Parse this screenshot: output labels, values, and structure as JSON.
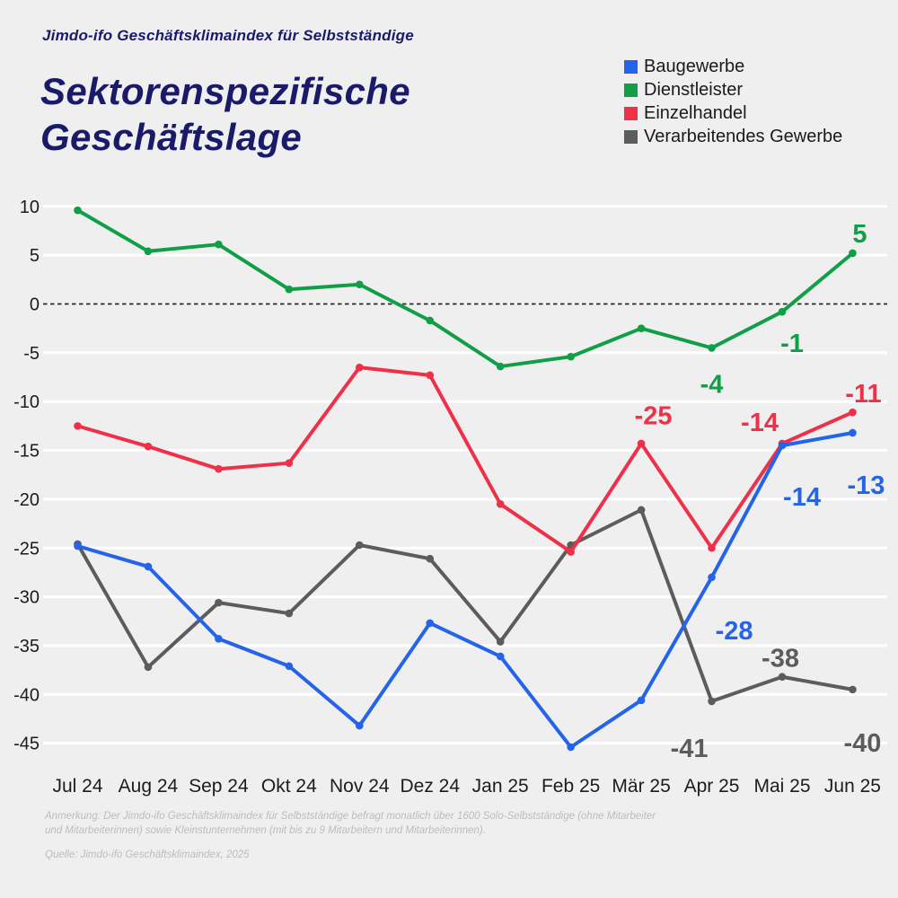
{
  "page": {
    "background": "#efefef"
  },
  "header": {
    "supertitle": "Jimdo-ifo Geschäftsklimaindex für Selbstständige",
    "title_line1": "Sektorenspezifische",
    "title_line2": "Geschäftslage",
    "title_color": "#1a1a6b"
  },
  "chart_data": {
    "type": "line",
    "title": "Sektorenspezifische Geschäftslage",
    "categories": [
      "Jul 24",
      "Aug 24",
      "Sep 24",
      "Okt 24",
      "Nov 24",
      "Dez 24",
      "Jan 25",
      "Feb 25",
      "Mär 25",
      "Apr 25",
      "Mai 25",
      "Jun 25"
    ],
    "series": [
      {
        "name": "Baugewerbe",
        "color": "#2563eb",
        "values": [
          -24.8,
          -26.9,
          -34.3,
          -37.1,
          -43.2,
          -32.7,
          -36.1,
          -45.4,
          -40.6,
          -28,
          -14.5,
          -13.2
        ],
        "point_labels": [
          {
            "index": 9,
            "text": "-28"
          },
          {
            "index": 10,
            "text": "-14"
          },
          {
            "index": 11,
            "text": "-13"
          }
        ]
      },
      {
        "name": "Dienstleister",
        "color": "#109e47",
        "values": [
          9.6,
          5.4,
          6.1,
          1.5,
          2.0,
          -1.7,
          -6.4,
          -5.4,
          -2.5,
          -4.5,
          -0.8,
          5.2
        ],
        "point_labels": [
          {
            "index": 9,
            "text": "-4"
          },
          {
            "index": 10,
            "text": "-1"
          },
          {
            "index": 11,
            "text": "5"
          }
        ]
      },
      {
        "name": "Einzelhandel",
        "color": "#ef3049",
        "values": [
          -12.5,
          -14.6,
          -16.9,
          -16.3,
          -6.5,
          -7.3,
          -20.5,
          -25.4,
          -14.3,
          -25.0,
          -14.3,
          -11.1
        ],
        "point_labels": [
          {
            "index": 9,
            "text": "-25"
          },
          {
            "index": 10,
            "text": "-14"
          },
          {
            "index": 11,
            "text": "-11"
          }
        ]
      },
      {
        "name": "Verarbeitendes Gewerbe",
        "color": "#5c5c5c",
        "values": [
          -24.6,
          -37.2,
          -30.6,
          -31.7,
          -24.7,
          -26.1,
          -34.6,
          -24.7,
          -21.1,
          -40.7,
          -38.2,
          -39.5
        ],
        "point_labels": [
          {
            "index": 9,
            "text": "-41"
          },
          {
            "index": 10,
            "text": "-38"
          },
          {
            "index": 11,
            "text": "-40"
          }
        ]
      }
    ],
    "yticks": [
      10,
      5,
      0,
      -5,
      -10,
      -15,
      -20,
      -25,
      -30,
      -35,
      -40,
      -45
    ],
    "ylim": [
      -47,
      12
    ],
    "zero_line": "dashed-black",
    "grid": "horizontal-white",
    "legend_position": "top-right"
  },
  "footer": {
    "note": "Anmerkung: Der Jimdo-ifo Geschäftsklimaindex für Selbstständige befragt monatlich über 1600 Solo-Selbstständige (ohne Mitarbeiter und Mitarbeiterinnen) sowie Kleinstunternehmen (mit bis zu 9 Mitarbeitern und Mitarbeiterinnen).",
    "source": "Quelle: Jimdo-ifo Geschäftsklimaindex, 2025"
  }
}
